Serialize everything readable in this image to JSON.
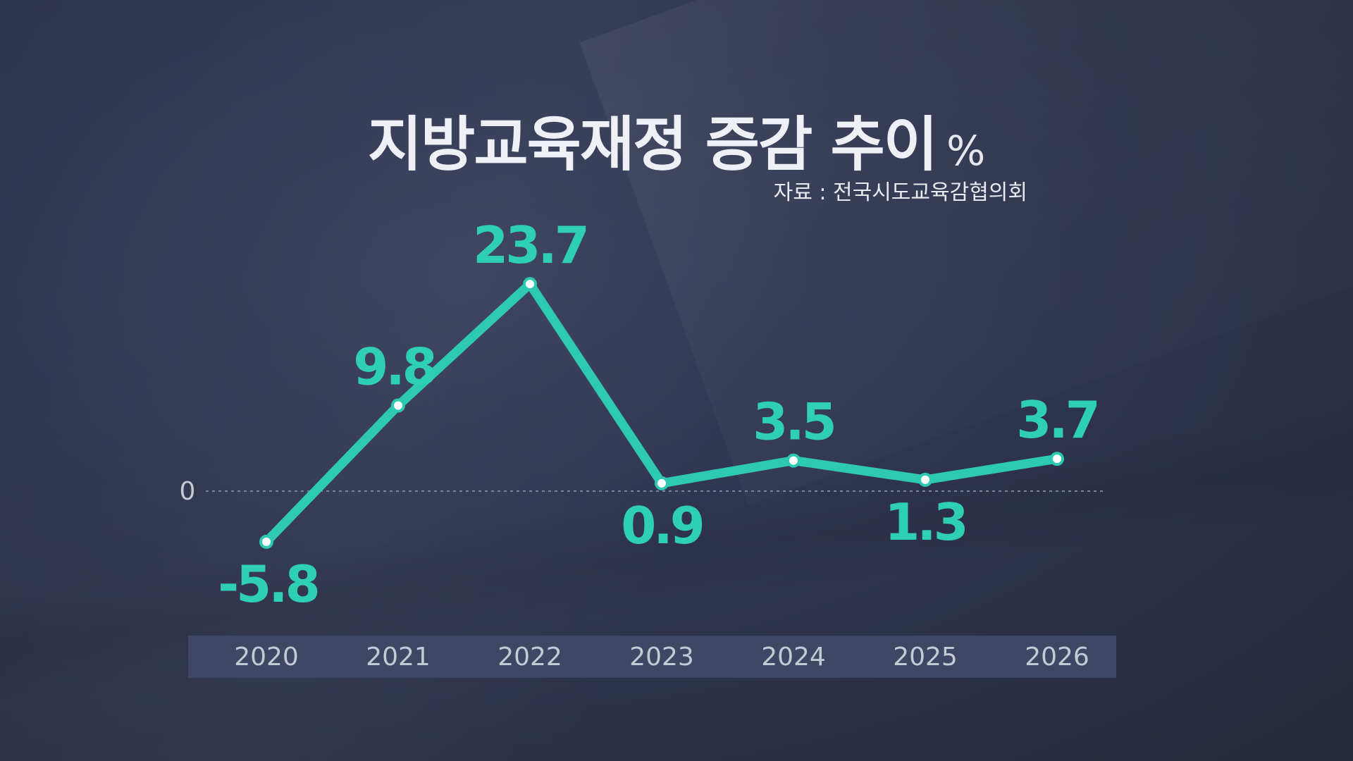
{
  "title": "지방교육재정 증감 추이",
  "unit": "%",
  "source": "자료 : 전국시도교육감협의회",
  "zero_label": "0",
  "colors": {
    "line": "#2ec9b1",
    "label": "#2fcfb4",
    "axis_band": "#3e4864",
    "tick_text": "#c4c9d6"
  },
  "chart_data": {
    "type": "line",
    "title": "지방교육재정 증감 추이",
    "unit": "%",
    "categories": [
      "2020",
      "2021",
      "2022",
      "2023",
      "2024",
      "2025",
      "2026"
    ],
    "series": [
      {
        "values": [
          -5.8,
          9.8,
          23.7,
          0.9,
          3.5,
          1.3,
          3.7
        ],
        "labels": [
          "-5.8",
          "9.8",
          "23.7",
          "0.9",
          "3.5",
          "1.3",
          "3.7"
        ]
      }
    ],
    "ylim": [
      -7,
      26
    ],
    "baseline": 0,
    "grid": false,
    "legend": "none"
  }
}
